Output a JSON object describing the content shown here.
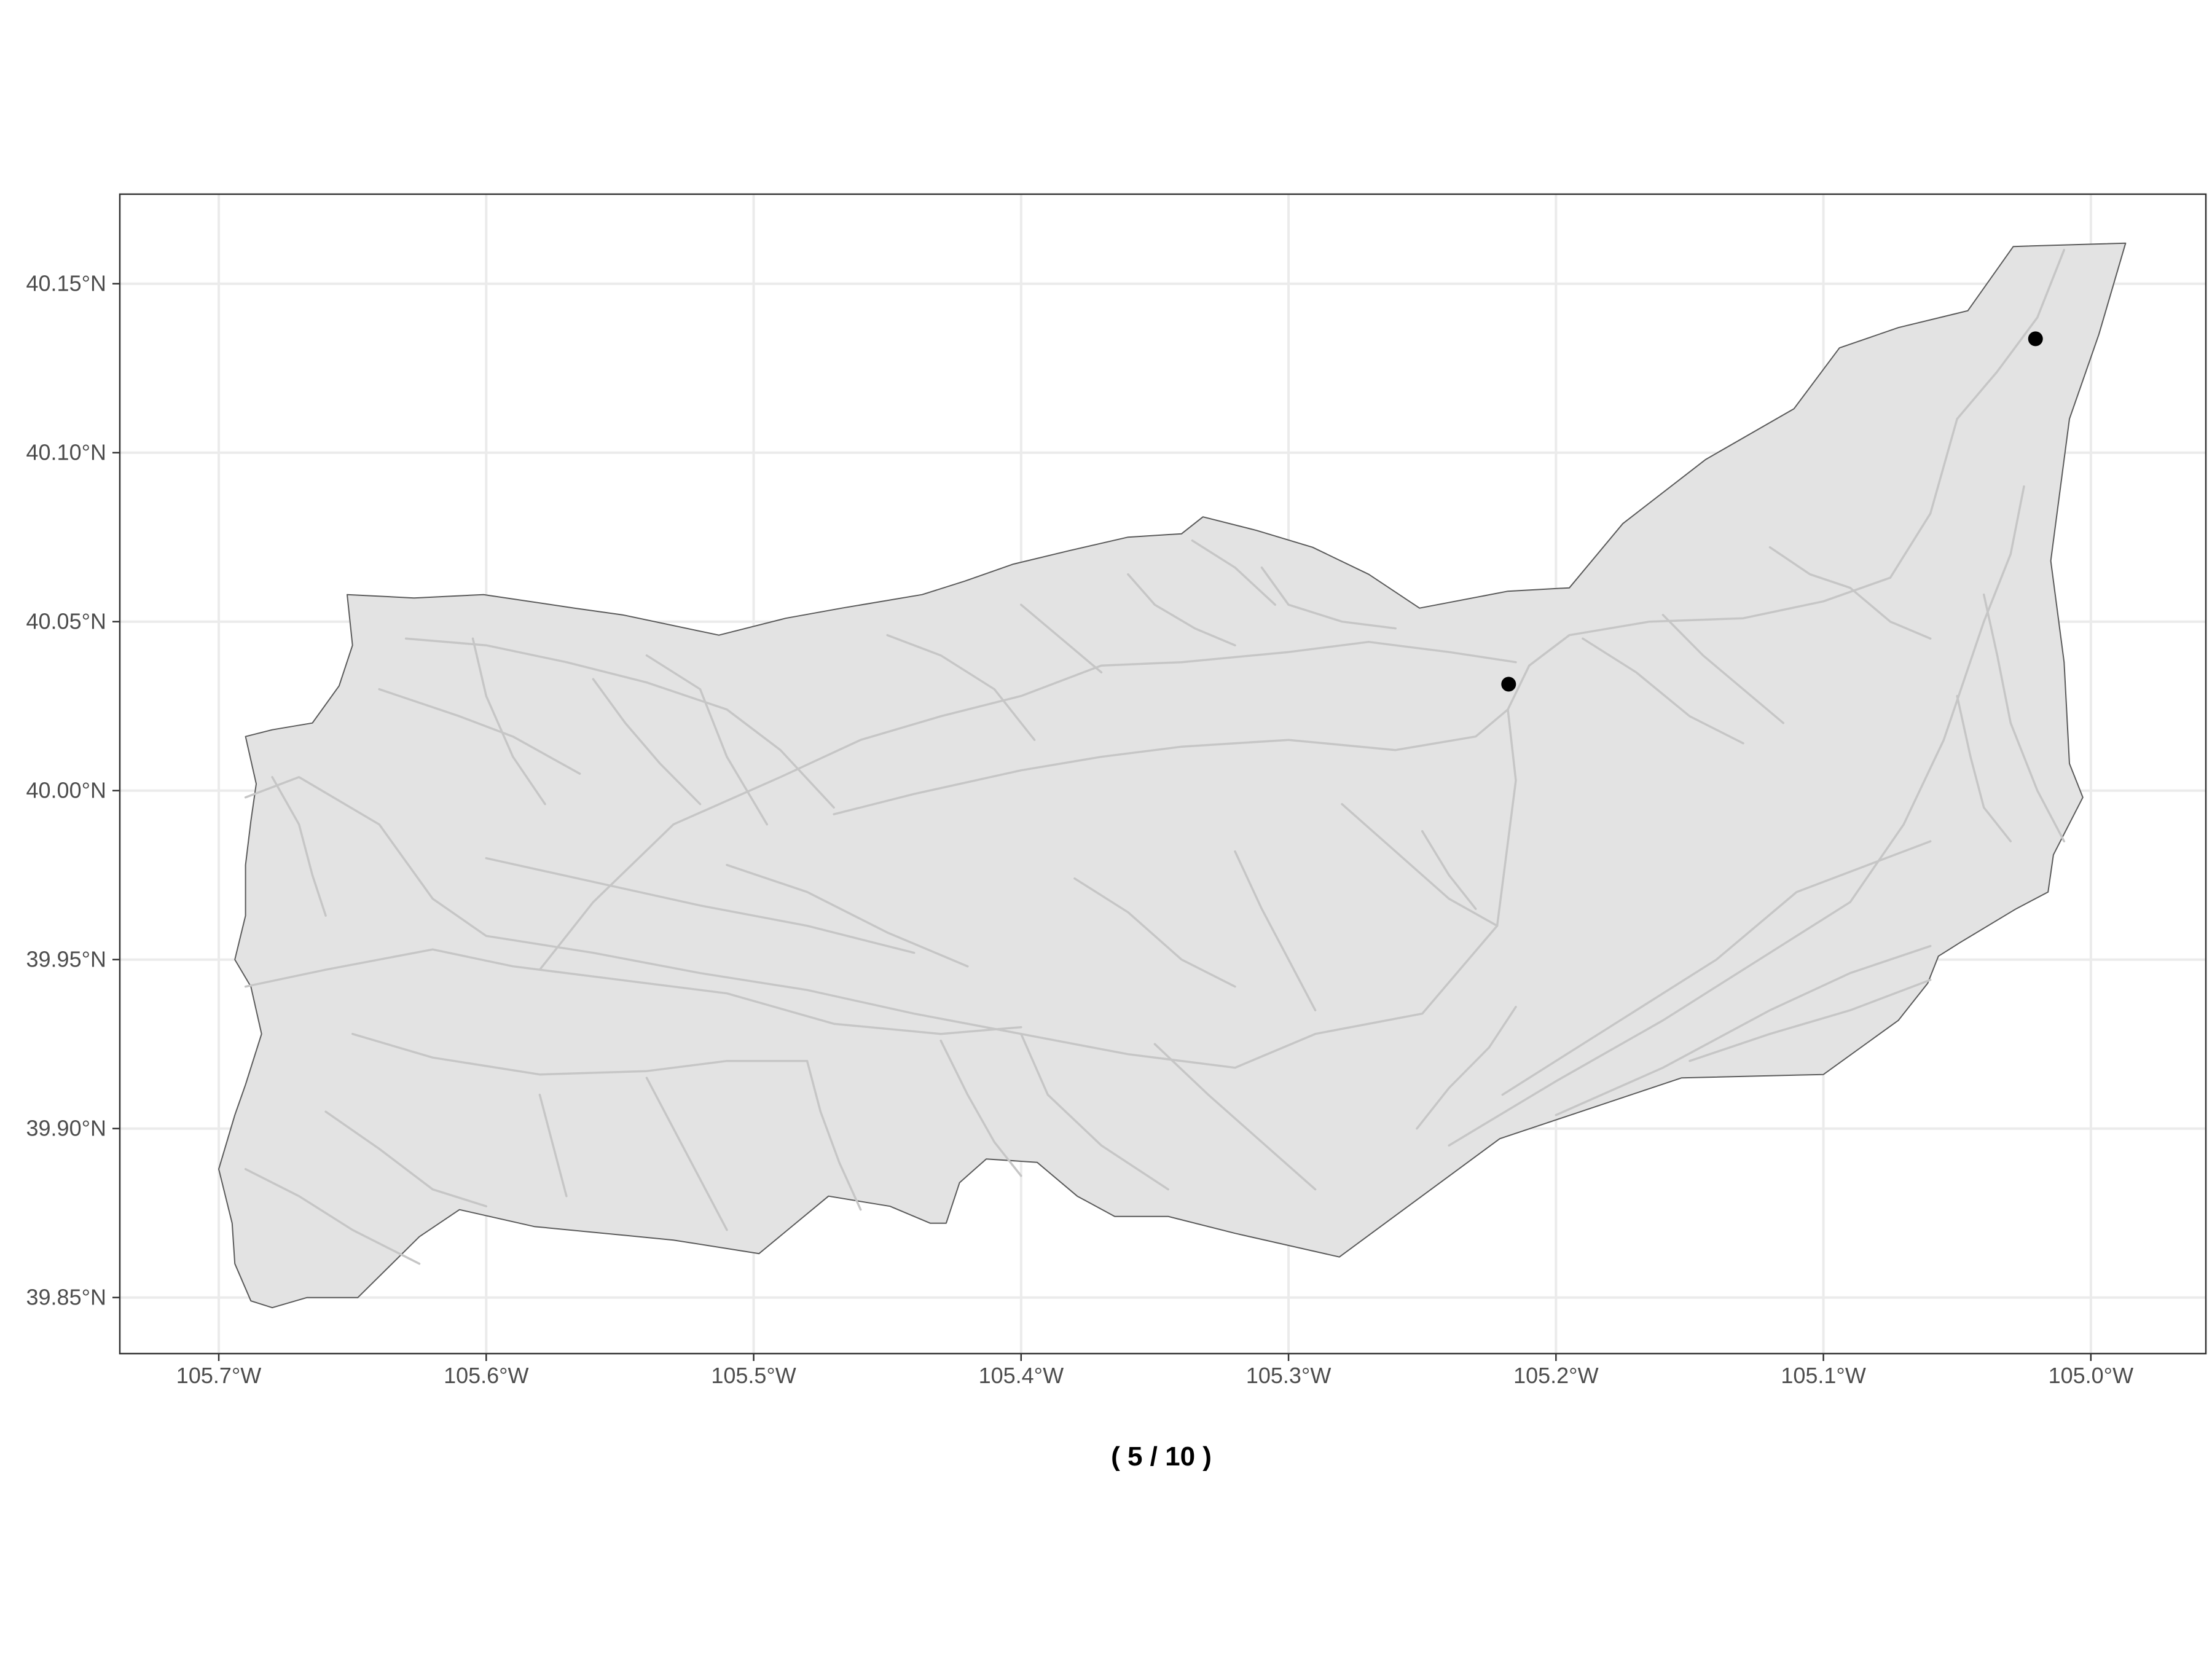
{
  "map": {
    "caption": "( 5 / 10 )",
    "x_axis": {
      "range": [
        -105.737,
        -104.957
      ],
      "ticks": [
        {
          "value": -105.7,
          "label": "105.7°W"
        },
        {
          "value": -105.6,
          "label": "105.6°W"
        },
        {
          "value": -105.5,
          "label": "105.5°W"
        },
        {
          "value": -105.4,
          "label": "105.4°W"
        },
        {
          "value": -105.3,
          "label": "105.3°W"
        },
        {
          "value": -105.2,
          "label": "105.2°W"
        },
        {
          "value": -105.1,
          "label": "105.1°W"
        },
        {
          "value": -105.0,
          "label": "105.0°W"
        }
      ]
    },
    "y_axis": {
      "range": [
        39.8334,
        40.1765
      ],
      "ticks": [
        {
          "value": 39.85,
          "label": "39.85°N"
        },
        {
          "value": 39.9,
          "label": "39.90°N"
        },
        {
          "value": 39.95,
          "label": "39.95°N"
        },
        {
          "value": 40.0,
          "label": "40.00°N"
        },
        {
          "value": 40.05,
          "label": "40.05°N"
        },
        {
          "value": 40.1,
          "label": "40.10°N"
        },
        {
          "value": 40.15,
          "label": "40.15°N"
        }
      ]
    },
    "grid": true,
    "colors": {
      "basin_fill": "#e3e3e3",
      "basin_outline": "#5a5a5a",
      "streams": "#c6c6c6",
      "gauges": "#000000",
      "grid": "#ebebeb",
      "panel_border": "#333333"
    },
    "basin_outline": [
      [
        -105.652,
        40.058
      ],
      [
        -105.627,
        40.057
      ],
      [
        -105.601,
        40.058
      ],
      [
        -105.567,
        40.054
      ],
      [
        -105.549,
        40.052
      ],
      [
        -105.513,
        40.046
      ],
      [
        -105.488,
        40.051
      ],
      [
        -105.467,
        40.054
      ],
      [
        -105.437,
        40.058
      ],
      [
        -105.421,
        40.062
      ],
      [
        -105.403,
        40.067
      ],
      [
        -105.382,
        40.071
      ],
      [
        -105.36,
        40.075
      ],
      [
        -105.34,
        40.076
      ],
      [
        -105.332,
        40.081
      ],
      [
        -105.312,
        40.077
      ],
      [
        -105.291,
        40.072
      ],
      [
        -105.27,
        40.064
      ],
      [
        -105.251,
        40.054
      ],
      [
        -105.218,
        40.059
      ],
      [
        -105.195,
        40.06
      ],
      [
        -105.175,
        40.079
      ],
      [
        -105.144,
        40.098
      ],
      [
        -105.111,
        40.113
      ],
      [
        -105.094,
        40.131
      ],
      [
        -105.072,
        40.137
      ],
      [
        -105.046,
        40.142
      ],
      [
        -105.029,
        40.161
      ],
      [
        -104.987,
        40.162
      ],
      [
        -104.997,
        40.135
      ],
      [
        -105.008,
        40.11
      ],
      [
        -105.015,
        40.068
      ],
      [
        -105.01,
        40.038
      ],
      [
        -105.008,
        40.008
      ],
      [
        -105.003,
        39.998
      ],
      [
        -105.014,
        39.981
      ],
      [
        -105.016,
        39.97
      ],
      [
        -105.028,
        39.965
      ],
      [
        -105.049,
        39.955
      ],
      [
        -105.057,
        39.951
      ],
      [
        -105.061,
        39.943
      ],
      [
        -105.072,
        39.932
      ],
      [
        -105.1,
        39.916
      ],
      [
        -105.153,
        39.915
      ],
      [
        -105.221,
        39.897
      ],
      [
        -105.281,
        39.862
      ],
      [
        -105.32,
        39.869
      ],
      [
        -105.345,
        39.874
      ],
      [
        -105.365,
        39.874
      ],
      [
        -105.379,
        39.88
      ],
      [
        -105.394,
        39.89
      ],
      [
        -105.413,
        39.891
      ],
      [
        -105.423,
        39.884
      ],
      [
        -105.428,
        39.872
      ],
      [
        -105.434,
        39.872
      ],
      [
        -105.449,
        39.877
      ],
      [
        -105.472,
        39.88
      ],
      [
        -105.498,
        39.863
      ],
      [
        -105.53,
        39.867
      ],
      [
        -105.582,
        39.871
      ],
      [
        -105.61,
        39.876
      ],
      [
        -105.625,
        39.868
      ],
      [
        -105.648,
        39.85
      ],
      [
        -105.667,
        39.85
      ],
      [
        -105.68,
        39.847
      ],
      [
        -105.688,
        39.849
      ],
      [
        -105.694,
        39.86
      ],
      [
        -105.695,
        39.872
      ],
      [
        -105.7,
        39.888
      ],
      [
        -105.694,
        39.904
      ],
      [
        -105.69,
        39.913
      ],
      [
        -105.684,
        39.928
      ],
      [
        -105.688,
        39.942
      ],
      [
        -105.694,
        39.95
      ],
      [
        -105.69,
        39.963
      ],
      [
        -105.69,
        39.978
      ],
      [
        -105.688,
        39.991
      ],
      [
        -105.686,
        40.002
      ],
      [
        -105.69,
        40.016
      ],
      [
        -105.68,
        40.018
      ],
      [
        -105.665,
        40.02
      ],
      [
        -105.655,
        40.031
      ],
      [
        -105.65,
        40.043
      ],
      [
        -105.652,
        40.058
      ]
    ],
    "streams": [
      [
        [
          -105.69,
          39.998
        ],
        [
          -105.67,
          40.004
        ],
        [
          -105.64,
          39.99
        ],
        [
          -105.62,
          39.968
        ],
        [
          -105.6,
          39.957
        ],
        [
          -105.56,
          39.952
        ],
        [
          -105.52,
          39.946
        ],
        [
          -105.48,
          39.941
        ],
        [
          -105.44,
          39.934
        ],
        [
          -105.4,
          39.928
        ],
        [
          -105.36,
          39.922
        ],
        [
          -105.32,
          39.918
        ],
        [
          -105.29,
          39.928
        ],
        [
          -105.25,
          39.934
        ],
        [
          -105.222,
          39.96
        ],
        [
          -105.215,
          40.003
        ],
        [
          -105.218,
          40.024
        ],
        [
          -105.21,
          40.037
        ],
        [
          -105.195,
          40.046
        ],
        [
          -105.165,
          40.05
        ],
        [
          -105.13,
          40.051
        ],
        [
          -105.1,
          40.056
        ],
        [
          -105.075,
          40.063
        ],
        [
          -105.06,
          40.082
        ],
        [
          -105.05,
          40.11
        ],
        [
          -105.035,
          40.124
        ],
        [
          -105.02,
          40.14
        ],
        [
          -105.01,
          40.16
        ]
      ],
      [
        [
          -105.69,
          39.942
        ],
        [
          -105.66,
          39.947
        ],
        [
          -105.62,
          39.953
        ],
        [
          -105.59,
          39.948
        ],
        [
          -105.55,
          39.944
        ],
        [
          -105.51,
          39.94
        ],
        [
          -105.47,
          39.931
        ],
        [
          -105.43,
          39.928
        ],
        [
          -105.4,
          39.93
        ]
      ],
      [
        [
          -105.58,
          39.947
        ],
        [
          -105.56,
          39.967
        ],
        [
          -105.53,
          39.99
        ],
        [
          -105.49,
          40.004
        ],
        [
          -105.46,
          40.015
        ],
        [
          -105.43,
          40.022
        ],
        [
          -105.4,
          40.028
        ],
        [
          -105.37,
          40.037
        ],
        [
          -105.34,
          40.038
        ],
        [
          -105.3,
          40.041
        ],
        [
          -105.27,
          40.044
        ],
        [
          -105.24,
          40.041
        ],
        [
          -105.215,
          40.038
        ]
      ],
      [
        [
          -105.47,
          39.993
        ],
        [
          -105.44,
          39.999
        ],
        [
          -105.4,
          40.006
        ],
        [
          -105.37,
          40.01
        ],
        [
          -105.34,
          40.013
        ],
        [
          -105.3,
          40.015
        ],
        [
          -105.26,
          40.012
        ],
        [
          -105.23,
          40.016
        ],
        [
          -105.218,
          40.024
        ]
      ],
      [
        [
          -105.63,
          40.045
        ],
        [
          -105.6,
          40.043
        ],
        [
          -105.57,
          40.038
        ],
        [
          -105.54,
          40.032
        ],
        [
          -105.51,
          40.024
        ],
        [
          -105.49,
          40.012
        ],
        [
          -105.47,
          39.995
        ]
      ],
      [
        [
          -105.64,
          40.03
        ],
        [
          -105.61,
          40.022
        ],
        [
          -105.59,
          40.016
        ],
        [
          -105.565,
          40.005
        ]
      ],
      [
        [
          -105.68,
          40.004
        ],
        [
          -105.67,
          39.99
        ],
        [
          -105.665,
          39.975
        ],
        [
          -105.66,
          39.963
        ]
      ],
      [
        [
          -105.605,
          40.045
        ],
        [
          -105.6,
          40.028
        ],
        [
          -105.59,
          40.01
        ],
        [
          -105.578,
          39.996
        ]
      ],
      [
        [
          -105.54,
          40.04
        ],
        [
          -105.52,
          40.03
        ],
        [
          -105.51,
          40.01
        ],
        [
          -105.495,
          39.99
        ]
      ],
      [
        [
          -105.56,
          40.033
        ],
        [
          -105.548,
          40.02
        ],
        [
          -105.535,
          40.008
        ],
        [
          -105.52,
          39.996
        ]
      ],
      [
        [
          -105.45,
          40.046
        ],
        [
          -105.43,
          40.04
        ],
        [
          -105.41,
          40.03
        ],
        [
          -105.395,
          40.015
        ]
      ],
      [
        [
          -105.4,
          40.055
        ],
        [
          -105.385,
          40.045
        ],
        [
          -105.37,
          40.035
        ]
      ],
      [
        [
          -105.36,
          40.064
        ],
        [
          -105.35,
          40.055
        ],
        [
          -105.335,
          40.048
        ],
        [
          -105.32,
          40.043
        ]
      ],
      [
        [
          -105.31,
          40.066
        ],
        [
          -105.3,
          40.055
        ],
        [
          -105.28,
          40.05
        ],
        [
          -105.26,
          40.048
        ]
      ],
      [
        [
          -105.336,
          40.074
        ],
        [
          -105.32,
          40.066
        ],
        [
          -105.305,
          40.055
        ]
      ],
      [
        [
          -105.51,
          39.978
        ],
        [
          -105.48,
          39.97
        ],
        [
          -105.45,
          39.958
        ],
        [
          -105.42,
          39.948
        ]
      ],
      [
        [
          -105.6,
          39.98
        ],
        [
          -105.56,
          39.973
        ],
        [
          -105.52,
          39.966
        ],
        [
          -105.48,
          39.96
        ],
        [
          -105.44,
          39.952
        ]
      ],
      [
        [
          -105.65,
          39.928
        ],
        [
          -105.62,
          39.921
        ],
        [
          -105.58,
          39.916
        ],
        [
          -105.54,
          39.917
        ],
        [
          -105.51,
          39.92
        ],
        [
          -105.48,
          39.92
        ]
      ],
      [
        [
          -105.66,
          39.905
        ],
        [
          -105.64,
          39.894
        ],
        [
          -105.62,
          39.882
        ],
        [
          -105.6,
          39.877
        ]
      ],
      [
        [
          -105.69,
          39.888
        ],
        [
          -105.67,
          39.88
        ],
        [
          -105.65,
          39.87
        ],
        [
          -105.625,
          39.86
        ]
      ],
      [
        [
          -105.58,
          39.91
        ],
        [
          -105.575,
          39.895
        ],
        [
          -105.57,
          39.88
        ]
      ],
      [
        [
          -105.54,
          39.915
        ],
        [
          -105.53,
          39.9
        ],
        [
          -105.52,
          39.885
        ],
        [
          -105.51,
          39.87
        ]
      ],
      [
        [
          -105.48,
          39.92
        ],
        [
          -105.475,
          39.905
        ],
        [
          -105.468,
          39.89
        ],
        [
          -105.46,
          39.876
        ]
      ],
      [
        [
          -105.43,
          39.926
        ],
        [
          -105.42,
          39.91
        ],
        [
          -105.41,
          39.896
        ],
        [
          -105.4,
          39.886
        ]
      ],
      [
        [
          -105.4,
          39.928
        ],
        [
          -105.39,
          39.91
        ],
        [
          -105.37,
          39.895
        ],
        [
          -105.345,
          39.882
        ]
      ],
      [
        [
          -105.35,
          39.925
        ],
        [
          -105.33,
          39.91
        ],
        [
          -105.31,
          39.896
        ],
        [
          -105.29,
          39.882
        ]
      ],
      [
        [
          -105.38,
          39.974
        ],
        [
          -105.36,
          39.964
        ],
        [
          -105.34,
          39.95
        ],
        [
          -105.32,
          39.942
        ]
      ],
      [
        [
          -105.32,
          39.982
        ],
        [
          -105.31,
          39.965
        ],
        [
          -105.3,
          39.95
        ],
        [
          -105.29,
          39.935
        ]
      ],
      [
        [
          -105.28,
          39.996
        ],
        [
          -105.26,
          39.982
        ],
        [
          -105.24,
          39.968
        ],
        [
          -105.222,
          39.96
        ]
      ],
      [
        [
          -105.25,
          39.988
        ],
        [
          -105.24,
          39.975
        ],
        [
          -105.23,
          39.965
        ]
      ],
      [
        [
          -105.252,
          39.9
        ],
        [
          -105.24,
          39.912
        ],
        [
          -105.225,
          39.924
        ],
        [
          -105.215,
          39.936
        ]
      ],
      [
        [
          -105.24,
          39.895
        ],
        [
          -105.2,
          39.914
        ],
        [
          -105.16,
          39.932
        ],
        [
          -105.12,
          39.952
        ],
        [
          -105.09,
          39.967
        ],
        [
          -105.07,
          39.99
        ],
        [
          -105.055,
          40.015
        ],
        [
          -105.04,
          40.05
        ],
        [
          -105.03,
          40.07
        ],
        [
          -105.025,
          40.09
        ]
      ],
      [
        [
          -105.22,
          39.91
        ],
        [
          -105.18,
          39.93
        ],
        [
          -105.14,
          39.95
        ],
        [
          -105.11,
          39.97
        ],
        [
          -105.08,
          39.979
        ],
        [
          -105.06,
          39.985
        ]
      ],
      [
        [
          -105.2,
          39.904
        ],
        [
          -105.16,
          39.918
        ],
        [
          -105.12,
          39.935
        ],
        [
          -105.09,
          39.946
        ],
        [
          -105.06,
          39.954
        ]
      ],
      [
        [
          -105.15,
          39.92
        ],
        [
          -105.12,
          39.928
        ],
        [
          -105.09,
          39.935
        ],
        [
          -105.06,
          39.944
        ]
      ],
      [
        [
          -105.19,
          40.045
        ],
        [
          -105.17,
          40.035
        ],
        [
          -105.15,
          40.022
        ],
        [
          -105.13,
          40.014
        ]
      ],
      [
        [
          -105.16,
          40.052
        ],
        [
          -105.145,
          40.04
        ],
        [
          -105.13,
          40.03
        ],
        [
          -105.115,
          40.02
        ]
      ],
      [
        [
          -105.04,
          40.058
        ],
        [
          -105.035,
          40.04
        ],
        [
          -105.03,
          40.02
        ],
        [
          -105.02,
          40.0
        ],
        [
          -105.01,
          39.985
        ]
      ],
      [
        [
          -105.05,
          40.028
        ],
        [
          -105.045,
          40.01
        ],
        [
          -105.04,
          39.995
        ],
        [
          -105.03,
          39.985
        ]
      ],
      [
        [
          -105.09,
          40.06
        ],
        [
          -105.075,
          40.05
        ],
        [
          -105.06,
          40.045
        ]
      ],
      [
        [
          -105.12,
          40.072
        ],
        [
          -105.105,
          40.064
        ],
        [
          -105.09,
          40.06
        ]
      ]
    ],
    "gauges": [
      {
        "lon": -105.2177,
        "lat": 40.0315
      },
      {
        "lon": -105.0207,
        "lat": 40.1337
      }
    ]
  }
}
